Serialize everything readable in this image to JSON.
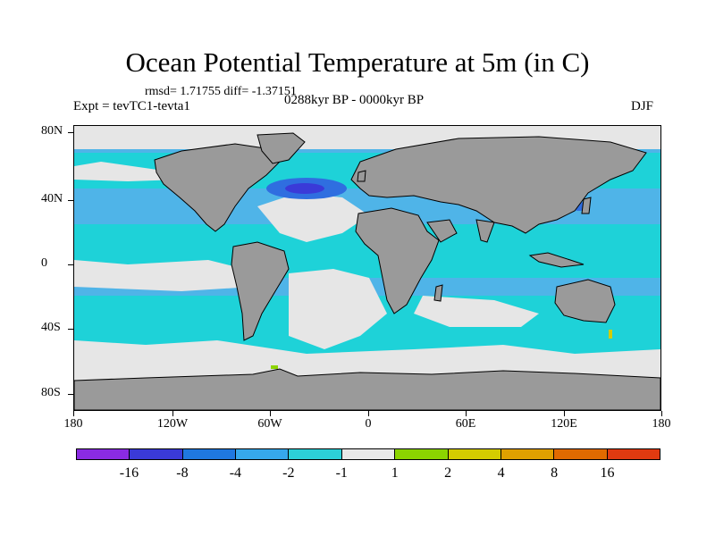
{
  "header": {
    "title": "Ocean Potential Temperature at 5m (in C)",
    "stats": "rmsd= 1.71755 diff= -1.37151",
    "experiment": "Expt = tevTC1-tevta1",
    "period": "0288kyr BP - 0000kyr BP",
    "season": "DJF"
  },
  "map": {
    "land_color": "#9a9a9a",
    "near_zero_color": "#e6e6e6",
    "cyan_color": "#1ed2d8",
    "mid_blue_color": "#4fb4e8",
    "dark_blue_color": "#2f6ee0",
    "deep_blue_color": "#3a3ad8",
    "green_color": "#8cd400",
    "yellow_color": "#d4cc00",
    "coast_color": "#000000"
  },
  "axes": {
    "y_labels": [
      "80N",
      "40N",
      "0",
      "40S",
      "80S"
    ],
    "x_labels": [
      "180",
      "120W",
      "60W",
      "0",
      "60E",
      "120E",
      "180"
    ]
  },
  "colorbar": {
    "colors": [
      "#8a2be2",
      "#3a3ad8",
      "#1f78e0",
      "#36a8ec",
      "#2cd0d8",
      "#e8e8e8",
      "#8cd400",
      "#d4cc00",
      "#e0a000",
      "#e06a00",
      "#e03a10"
    ],
    "labels": [
      "-16",
      "-8",
      "-4",
      "-2",
      "-1",
      "1",
      "2",
      "4",
      "8",
      "16"
    ]
  }
}
